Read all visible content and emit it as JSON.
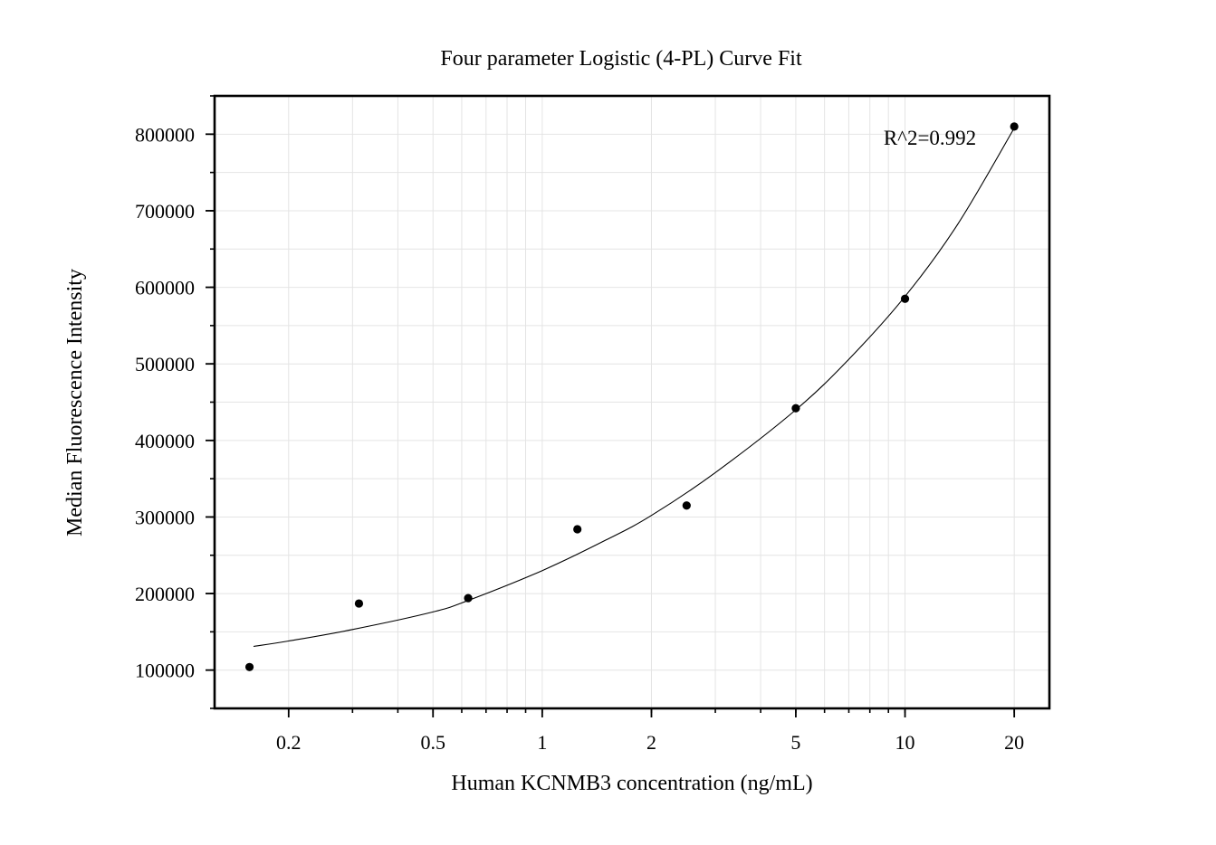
{
  "chart_data": {
    "type": "scatter",
    "title": "Four parameter Logistic (4-PL) Curve Fit",
    "xlabel": "Human KCNMB3 concentration (ng/mL)",
    "ylabel": "Median Fluorescence Intensity",
    "x_scale": "log",
    "xlim": [
      0.125,
      25
    ],
    "ylim": [
      50000,
      850000
    ],
    "x_ticks": [
      0.2,
      0.5,
      1,
      2,
      5,
      10,
      20
    ],
    "x_tick_labels": [
      "0.2",
      "0.5",
      "1",
      "2",
      "5",
      "10",
      "20"
    ],
    "y_ticks": [
      100000,
      200000,
      300000,
      400000,
      500000,
      600000,
      700000,
      800000
    ],
    "y_tick_labels": [
      "100000",
      "200000",
      "300000",
      "400000",
      "500000",
      "600000",
      "700000",
      "800000"
    ],
    "grid": true,
    "points": {
      "x": [
        0.156,
        0.3125,
        0.625,
        1.25,
        2.5,
        5,
        10,
        20
      ],
      "y": [
        104000,
        187000,
        194000,
        284000,
        315000,
        442000,
        585000,
        810000
      ]
    },
    "fit_curve": {
      "model": "4-PL",
      "x": [
        0.16,
        0.2,
        0.3,
        0.5,
        0.625,
        1,
        1.5,
        2,
        3,
        5,
        7,
        10,
        14,
        20
      ],
      "y": [
        131000,
        138000,
        153000,
        176000,
        191000,
        230000,
        270000,
        302000,
        358000,
        440000,
        506000,
        588000,
        683000,
        808000
      ]
    },
    "annotation": "R^2=0.992"
  },
  "colors": {
    "points": "#000000",
    "curve": "#000000",
    "grid": "#e4e4e4",
    "frame": "#000000"
  }
}
